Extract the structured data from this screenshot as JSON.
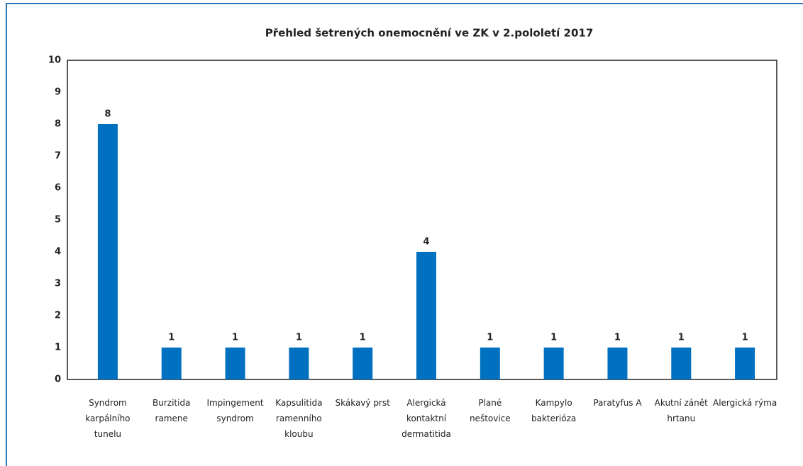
{
  "chart_data": {
    "type": "bar",
    "title": "Přehled šetrených onemocnění ve ZK v 2.pololetí 2017",
    "categories": [
      "Syndrom karpálního tunelu",
      "Burzitida ramene",
      "Impingement syndrom",
      "Kapsulitida ramenního kloubu",
      "Skákavý prst",
      "Alergická kontaktní dermatitida",
      "Plané neštovice",
      "Kampylo bakterióza",
      "Paratyfus A",
      "Akutní zánět hrtanu",
      "Alergická rýma"
    ],
    "values": [
      8,
      1,
      1,
      1,
      1,
      4,
      1,
      1,
      1,
      1,
      1
    ],
    "color": "#0070c0",
    "ylim": [
      0,
      10
    ],
    "yticks": [
      0,
      1,
      2,
      3,
      4,
      5,
      6,
      7,
      8,
      9,
      10
    ],
    "grid": false
  }
}
